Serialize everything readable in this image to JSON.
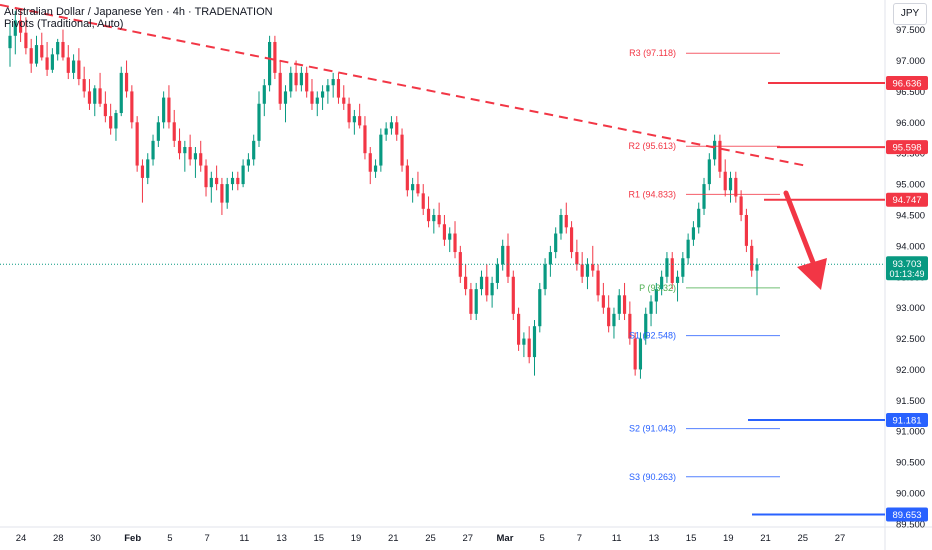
{
  "header": {
    "title": "Australian Dollar / Japanese Yen · 4h · TRADENATION",
    "indicator": "Pivots (Traditional, Auto)",
    "currency_button": "JPY"
  },
  "chart_data": {
    "type": "candlestick",
    "ylim": [
      89.45,
      97.85
    ],
    "y_ticks": [
      "97.500",
      "97.000",
      "96.500",
      "96.000",
      "95.500",
      "95.000",
      "94.500",
      "94.000",
      "93.500",
      "93.000",
      "92.500",
      "92.000",
      "91.500",
      "91.000",
      "90.500",
      "90.000",
      "89.500"
    ],
    "x_ticks": [
      "24",
      "28",
      "30",
      "Feb",
      "5",
      "7",
      "11",
      "13",
      "15",
      "19",
      "21",
      "25",
      "27",
      "Mar",
      "5",
      "7",
      "11",
      "13",
      "15",
      "19",
      "21",
      "25",
      "27"
    ],
    "current_price": "93.703",
    "countdown": "01:13:49",
    "pivots": [
      {
        "label": "R3 (97.118)",
        "value": 97.118,
        "color": "#f23645"
      },
      {
        "label": "R2 (95.613)",
        "value": 95.613,
        "color": "#f23645"
      },
      {
        "label": "R1 (94.833)",
        "value": 94.833,
        "color": "#f23645"
      },
      {
        "label": "P (93.32)",
        "value": 93.32,
        "color": "#4caf50"
      },
      {
        "label": "S1 (92.548)",
        "value": 92.548,
        "color": "#2962ff"
      },
      {
        "label": "S2 (91.043)",
        "value": 91.043,
        "color": "#2962ff"
      },
      {
        "label": "S3 (90.263)",
        "value": 90.263,
        "color": "#2962ff"
      }
    ],
    "levels": [
      {
        "value": 96.636,
        "label": "96.636",
        "color": "#f23645"
      },
      {
        "value": 95.598,
        "label": "95.598",
        "color": "#f23645"
      },
      {
        "value": 94.747,
        "label": "94.747",
        "color": "#f23645"
      },
      {
        "value": 91.181,
        "label": "91.181",
        "color": "#2962ff"
      },
      {
        "value": 89.653,
        "label": "89.653",
        "color": "#2962ff"
      }
    ],
    "trendline": [
      [
        97.9,
        0
      ],
      [
        95.3,
        1
      ]
    ],
    "candles": [
      [
        97.2,
        97.6,
        96.9,
        97.4
      ],
      [
        97.4,
        97.8,
        97.1,
        97.65
      ],
      [
        97.65,
        97.85,
        97.3,
        97.45
      ],
      [
        97.45,
        97.7,
        97.1,
        97.2
      ],
      [
        97.2,
        97.35,
        96.8,
        96.95
      ],
      [
        96.95,
        97.4,
        96.9,
        97.25
      ],
      [
        97.25,
        97.45,
        97.0,
        97.05
      ],
      [
        97.05,
        97.3,
        96.75,
        96.85
      ],
      [
        96.85,
        97.2,
        96.8,
        97.1
      ],
      [
        97.1,
        97.35,
        97.0,
        97.3
      ],
      [
        97.3,
        97.5,
        97.0,
        97.05
      ],
      [
        97.05,
        97.25,
        96.7,
        96.8
      ],
      [
        96.8,
        97.1,
        96.7,
        97.0
      ],
      [
        97.0,
        97.2,
        96.6,
        96.7
      ],
      [
        96.7,
        96.9,
        96.4,
        96.5
      ],
      [
        96.5,
        96.7,
        96.2,
        96.3
      ],
      [
        96.3,
        96.6,
        96.1,
        96.55
      ],
      [
        96.55,
        96.8,
        96.25,
        96.3
      ],
      [
        96.3,
        96.5,
        96.0,
        96.1
      ],
      [
        96.1,
        96.3,
        95.8,
        95.9
      ],
      [
        95.9,
        96.2,
        95.7,
        96.15
      ],
      [
        96.15,
        96.9,
        96.1,
        96.8
      ],
      [
        96.8,
        97.0,
        96.4,
        96.5
      ],
      [
        96.5,
        96.6,
        95.9,
        96.0
      ],
      [
        96.0,
        96.1,
        95.2,
        95.3
      ],
      [
        95.3,
        95.4,
        94.7,
        95.1
      ],
      [
        95.1,
        95.5,
        95.0,
        95.4
      ],
      [
        95.4,
        95.8,
        95.3,
        95.7
      ],
      [
        95.7,
        96.1,
        95.6,
        96.0
      ],
      [
        96.0,
        96.5,
        95.9,
        96.4
      ],
      [
        96.4,
        96.6,
        95.9,
        96.0
      ],
      [
        96.0,
        96.2,
        95.6,
        95.7
      ],
      [
        95.7,
        95.9,
        95.4,
        95.5
      ],
      [
        95.5,
        95.7,
        95.2,
        95.6
      ],
      [
        95.6,
        95.8,
        95.3,
        95.4
      ],
      [
        95.4,
        95.6,
        95.1,
        95.5
      ],
      [
        95.5,
        95.7,
        95.2,
        95.3
      ],
      [
        95.3,
        95.4,
        94.8,
        94.95
      ],
      [
        94.95,
        95.2,
        94.7,
        95.1
      ],
      [
        95.1,
        95.3,
        94.9,
        95.0
      ],
      [
        95.0,
        95.1,
        94.5,
        94.7
      ],
      [
        94.7,
        95.1,
        94.6,
        95.0
      ],
      [
        95.0,
        95.2,
        94.9,
        95.1
      ],
      [
        95.1,
        95.2,
        94.9,
        95.0
      ],
      [
        95.0,
        95.4,
        94.95,
        95.3
      ],
      [
        95.3,
        95.5,
        95.2,
        95.4
      ],
      [
        95.4,
        95.8,
        95.3,
        95.7
      ],
      [
        95.7,
        96.5,
        95.6,
        96.3
      ],
      [
        96.3,
        96.7,
        96.1,
        96.6
      ],
      [
        96.6,
        97.4,
        96.5,
        97.3
      ],
      [
        97.3,
        97.4,
        96.7,
        96.8
      ],
      [
        96.8,
        97.0,
        96.2,
        96.3
      ],
      [
        96.3,
        96.6,
        96.0,
        96.5
      ],
      [
        96.5,
        96.9,
        96.4,
        96.8
      ],
      [
        96.8,
        97.0,
        96.5,
        96.6
      ],
      [
        96.6,
        96.9,
        96.5,
        96.8
      ],
      [
        96.8,
        96.9,
        96.4,
        96.5
      ],
      [
        96.5,
        96.7,
        96.2,
        96.3
      ],
      [
        96.3,
        96.5,
        96.1,
        96.4
      ],
      [
        96.4,
        96.6,
        96.2,
        96.5
      ],
      [
        96.5,
        96.7,
        96.3,
        96.6
      ],
      [
        96.6,
        96.8,
        96.4,
        96.7
      ],
      [
        96.7,
        96.8,
        96.3,
        96.4
      ],
      [
        96.4,
        96.6,
        96.2,
        96.3
      ],
      [
        96.3,
        96.4,
        95.9,
        96.0
      ],
      [
        96.0,
        96.2,
        95.8,
        96.1
      ],
      [
        96.1,
        96.3,
        95.9,
        95.95
      ],
      [
        95.95,
        96.1,
        95.4,
        95.5
      ],
      [
        95.5,
        95.6,
        95.0,
        95.2
      ],
      [
        95.2,
        95.4,
        95.1,
        95.3
      ],
      [
        95.3,
        95.9,
        95.2,
        95.8
      ],
      [
        95.8,
        96.0,
        95.7,
        95.9
      ],
      [
        95.9,
        96.1,
        95.8,
        96.0
      ],
      [
        96.0,
        96.1,
        95.7,
        95.8
      ],
      [
        95.8,
        95.9,
        95.2,
        95.3
      ],
      [
        95.3,
        95.4,
        94.8,
        94.9
      ],
      [
        94.9,
        95.1,
        94.7,
        95.0
      ],
      [
        95.0,
        95.2,
        94.8,
        94.85
      ],
      [
        94.85,
        95.0,
        94.5,
        94.6
      ],
      [
        94.6,
        94.8,
        94.3,
        94.4
      ],
      [
        94.4,
        94.6,
        94.2,
        94.5
      ],
      [
        94.5,
        94.7,
        94.3,
        94.35
      ],
      [
        94.35,
        94.5,
        94.0,
        94.1
      ],
      [
        94.1,
        94.3,
        93.9,
        94.2
      ],
      [
        94.2,
        94.4,
        93.8,
        93.9
      ],
      [
        93.9,
        94.0,
        93.4,
        93.5
      ],
      [
        93.5,
        93.7,
        93.2,
        93.3
      ],
      [
        93.3,
        93.4,
        92.8,
        92.9
      ],
      [
        92.9,
        93.4,
        92.8,
        93.3
      ],
      [
        93.3,
        93.6,
        93.2,
        93.5
      ],
      [
        93.5,
        93.7,
        93.1,
        93.2
      ],
      [
        93.2,
        93.5,
        93.0,
        93.4
      ],
      [
        93.4,
        93.8,
        93.3,
        93.7
      ],
      [
        93.7,
        94.1,
        93.6,
        94.0
      ],
      [
        94.0,
        94.2,
        93.4,
        93.5
      ],
      [
        93.5,
        93.6,
        92.8,
        92.9
      ],
      [
        92.9,
        93.0,
        92.3,
        92.4
      ],
      [
        92.4,
        92.6,
        92.2,
        92.5
      ],
      [
        92.5,
        92.7,
        92.1,
        92.2
      ],
      [
        92.2,
        92.8,
        91.9,
        92.7
      ],
      [
        92.7,
        93.4,
        92.6,
        93.3
      ],
      [
        93.3,
        93.8,
        93.2,
        93.7
      ],
      [
        93.7,
        94.0,
        93.5,
        93.9
      ],
      [
        93.9,
        94.3,
        93.8,
        94.2
      ],
      [
        94.2,
        94.6,
        94.1,
        94.5
      ],
      [
        94.5,
        94.7,
        94.2,
        94.3
      ],
      [
        94.3,
        94.4,
        93.8,
        93.9
      ],
      [
        93.9,
        94.1,
        93.6,
        93.7
      ],
      [
        93.7,
        93.9,
        93.4,
        93.5
      ],
      [
        93.5,
        93.8,
        93.3,
        93.7
      ],
      [
        93.7,
        94.0,
        93.5,
        93.6
      ],
      [
        93.6,
        93.7,
        93.1,
        93.2
      ],
      [
        93.2,
        93.4,
        92.9,
        93.0
      ],
      [
        93.0,
        93.2,
        92.6,
        92.7
      ],
      [
        92.7,
        93.0,
        92.5,
        92.9
      ],
      [
        92.9,
        93.3,
        92.8,
        93.2
      ],
      [
        93.2,
        93.4,
        92.8,
        92.9
      ],
      [
        92.9,
        93.1,
        92.4,
        92.5
      ],
      [
        92.5,
        92.6,
        91.9,
        92.0
      ],
      [
        92.0,
        92.6,
        91.85,
        92.5
      ],
      [
        92.5,
        93.0,
        92.4,
        92.9
      ],
      [
        92.9,
        93.2,
        92.7,
        93.1
      ],
      [
        93.1,
        93.4,
        92.9,
        93.3
      ],
      [
        93.3,
        93.6,
        93.2,
        93.5
      ],
      [
        93.5,
        93.9,
        93.4,
        93.8
      ],
      [
        93.8,
        93.9,
        93.3,
        93.4
      ],
      [
        93.4,
        93.6,
        93.1,
        93.5
      ],
      [
        93.5,
        93.9,
        93.4,
        93.8
      ],
      [
        93.8,
        94.2,
        93.7,
        94.1
      ],
      [
        94.1,
        94.4,
        94.0,
        94.3
      ],
      [
        94.3,
        94.7,
        94.2,
        94.6
      ],
      [
        94.6,
        95.1,
        94.5,
        95.0
      ],
      [
        95.0,
        95.5,
        94.9,
        95.4
      ],
      [
        95.4,
        95.8,
        95.3,
        95.7
      ],
      [
        95.7,
        95.8,
        95.1,
        95.2
      ],
      [
        95.2,
        95.4,
        94.8,
        94.9
      ],
      [
        94.9,
        95.2,
        94.7,
        95.1
      ],
      [
        95.1,
        95.2,
        94.7,
        94.8
      ],
      [
        94.8,
        94.9,
        94.4,
        94.5
      ],
      [
        94.5,
        94.6,
        93.9,
        94.0
      ],
      [
        94.0,
        94.1,
        93.5,
        93.6
      ],
      [
        93.6,
        93.8,
        93.2,
        93.7
      ]
    ]
  }
}
